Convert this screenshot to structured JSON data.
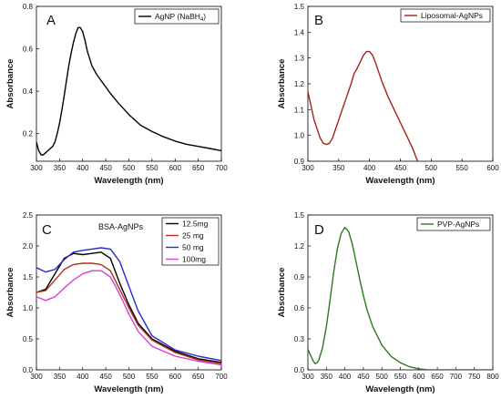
{
  "chart_data": [
    {
      "panel": "A",
      "type": "line",
      "xlabel": "Wavelength (nm)",
      "ylabel": "Absorbance",
      "xlim": [
        300,
        700
      ],
      "ylim": [
        0.07,
        0.8
      ],
      "xticks": [
        300,
        350,
        400,
        450,
        500,
        550,
        600,
        650,
        700
      ],
      "yticks": [
        0.2,
        0.4,
        0.6,
        0.8
      ],
      "ytick_labels": [
        "0.2",
        "0.4",
        "0.6",
        "0.8"
      ],
      "legend": "top-right",
      "series": [
        {
          "name": "AgNP (NaBH",
          "name_sub": "4",
          "name_suffix": ")",
          "color": "#000000",
          "x": [
            300,
            305,
            310,
            315,
            320,
            325,
            330,
            335,
            340,
            345,
            350,
            355,
            360,
            365,
            370,
            375,
            380,
            385,
            390,
            395,
            400,
            405,
            410,
            420,
            430,
            440,
            450,
            460,
            475,
            500,
            525,
            550,
            575,
            600,
            625,
            650,
            675,
            700
          ],
          "y": [
            0.16,
            0.12,
            0.1,
            0.1,
            0.11,
            0.12,
            0.13,
            0.14,
            0.16,
            0.2,
            0.25,
            0.31,
            0.38,
            0.45,
            0.52,
            0.58,
            0.63,
            0.67,
            0.7,
            0.7,
            0.68,
            0.64,
            0.59,
            0.52,
            0.48,
            0.45,
            0.42,
            0.39,
            0.35,
            0.29,
            0.24,
            0.21,
            0.185,
            0.165,
            0.15,
            0.14,
            0.13,
            0.12
          ]
        }
      ]
    },
    {
      "panel": "B",
      "type": "line",
      "xlabel": "Wavelength (nm)",
      "ylabel": "Absorbance",
      "xlim": [
        300,
        600
      ],
      "ylim": [
        0.9,
        1.5
      ],
      "xticks": [
        300,
        350,
        400,
        450,
        500,
        550,
        600
      ],
      "yticks": [
        0.9,
        1.0,
        1.1,
        1.2,
        1.3,
        1.4,
        1.5
      ],
      "ytick_labels": [
        "0.9",
        "1.0",
        "1.1",
        "1.2",
        "1.3",
        "1.4",
        "1.5"
      ],
      "legend": "top-right",
      "series": [
        {
          "name": "Liposomal-AgNPs",
          "color": "#a0241a",
          "x": [
            300,
            310,
            320,
            325,
            330,
            335,
            340,
            350,
            360,
            370,
            375,
            380,
            385,
            390,
            395,
            400,
            405,
            410,
            420,
            430,
            440,
            450,
            460,
            470,
            478
          ],
          "y": [
            1.17,
            1.06,
            0.99,
            0.97,
            0.965,
            0.97,
            0.99,
            1.06,
            1.13,
            1.2,
            1.24,
            1.26,
            1.285,
            1.31,
            1.325,
            1.325,
            1.31,
            1.28,
            1.21,
            1.15,
            1.1,
            1.05,
            1.0,
            0.95,
            0.9
          ]
        }
      ]
    },
    {
      "panel": "C",
      "type": "line",
      "annotation": "BSA-AgNPs",
      "xlabel": "Wavelength (nm)",
      "ylabel": "Absorbance",
      "xlim": [
        300,
        700
      ],
      "ylim": [
        0,
        2.5
      ],
      "xticks": [
        300,
        350,
        400,
        450,
        500,
        550,
        600,
        650,
        700
      ],
      "yticks": [
        0,
        0.5,
        1.0,
        1.5,
        2.0,
        2.5
      ],
      "ytick_labels": [
        "0.0",
        "0.5",
        "1.0",
        "1.5",
        "2.0",
        "2.5"
      ],
      "legend": "top-right",
      "series": [
        {
          "name": "12.5mg",
          "color": "#000000",
          "x": [
            300,
            320,
            340,
            360,
            380,
            400,
            420,
            440,
            460,
            480,
            500,
            520,
            550,
            600,
            650,
            700
          ],
          "y": [
            1.25,
            1.3,
            1.55,
            1.8,
            1.88,
            1.86,
            1.88,
            1.9,
            1.8,
            1.4,
            1.05,
            0.75,
            0.5,
            0.3,
            0.18,
            0.12
          ]
        },
        {
          "name": "25 mg",
          "color": "#b5301e",
          "x": [
            300,
            320,
            340,
            360,
            380,
            400,
            420,
            440,
            460,
            480,
            500,
            520,
            550,
            600,
            650,
            700
          ],
          "y": [
            1.25,
            1.28,
            1.45,
            1.62,
            1.7,
            1.72,
            1.72,
            1.7,
            1.6,
            1.3,
            1.0,
            0.72,
            0.48,
            0.28,
            0.16,
            0.1
          ]
        },
        {
          "name": "50 mg",
          "color": "#2a2ac8",
          "x": [
            300,
            320,
            340,
            360,
            380,
            400,
            420,
            440,
            460,
            480,
            500,
            520,
            550,
            600,
            650,
            700
          ],
          "y": [
            1.65,
            1.58,
            1.62,
            1.78,
            1.9,
            1.93,
            1.95,
            1.97,
            1.95,
            1.75,
            1.35,
            0.95,
            0.55,
            0.32,
            0.22,
            0.15
          ]
        },
        {
          "name": "100mg",
          "color": "#d640d6",
          "x": [
            300,
            320,
            340,
            360,
            380,
            400,
            420,
            440,
            460,
            480,
            500,
            520,
            550,
            600,
            650,
            700
          ],
          "y": [
            1.18,
            1.12,
            1.18,
            1.32,
            1.45,
            1.55,
            1.6,
            1.6,
            1.5,
            1.22,
            0.9,
            0.62,
            0.38,
            0.22,
            0.14,
            0.08
          ]
        }
      ]
    },
    {
      "panel": "D",
      "type": "line",
      "xlabel": "Wavelength (nm)",
      "ylabel": "Absorbance",
      "xlim": [
        300,
        800
      ],
      "ylim": [
        0,
        1.5
      ],
      "xticks": [
        300,
        350,
        400,
        450,
        500,
        550,
        600,
        650,
        700,
        750,
        800
      ],
      "yticks": [
        0,
        0.3,
        0.6,
        0.9,
        1.2,
        1.5
      ],
      "ytick_labels": [
        "0.0",
        "0.3",
        "0.6",
        "0.9",
        "1.2",
        "1.5"
      ],
      "legend": "top-right",
      "series": [
        {
          "name": "PVP-AgNPs",
          "color": "#2b7a1c",
          "x": [
            300,
            305,
            310,
            315,
            320,
            325,
            330,
            340,
            350,
            360,
            370,
            380,
            390,
            400,
            410,
            420,
            430,
            440,
            450,
            460,
            475,
            500,
            525,
            550,
            575,
            600,
            625,
            650,
            700,
            750,
            800
          ],
          "y": [
            0.2,
            0.16,
            0.12,
            0.08,
            0.06,
            0.07,
            0.1,
            0.22,
            0.42,
            0.68,
            0.95,
            1.18,
            1.32,
            1.38,
            1.34,
            1.22,
            1.05,
            0.88,
            0.72,
            0.58,
            0.42,
            0.24,
            0.13,
            0.07,
            0.03,
            0.01,
            0.0,
            0.0,
            0.0,
            0.0,
            0.0
          ]
        }
      ]
    }
  ]
}
